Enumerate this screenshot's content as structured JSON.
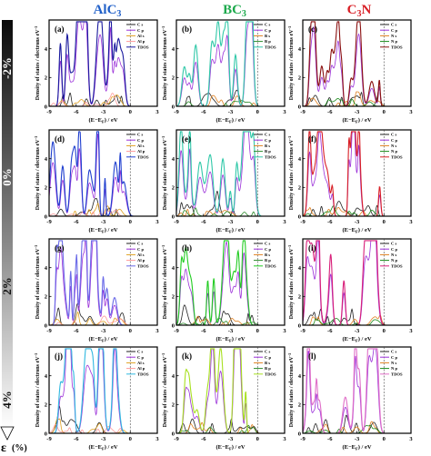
{
  "column_titles": [
    {
      "base": "AlC",
      "sub": "3",
      "color": "#1f5fc8"
    },
    {
      "base": "BC",
      "sub": "3",
      "color": "#1aa84a"
    },
    {
      "base": "C",
      "sub": "3",
      "tail": "N",
      "color": "#d81f26"
    }
  ],
  "strain_axis": {
    "symbol": "ε",
    "unit": "(%)",
    "labels": [
      "-2%",
      "0%",
      "2%",
      "4%"
    ]
  },
  "axis_text": {
    "ylabel": "Density of states / electrons eV",
    "ylabel_sup": "-1",
    "xlabel_prefix": "(E−E",
    "xlabel_sub": "F",
    "xlabel_suffix": ") / eV"
  },
  "chart_data": [
    {
      "type": "line",
      "panel": "(a)",
      "material": "AlC3",
      "strain": "-2%",
      "xlim": [
        -9,
        3
      ],
      "ylim": [
        0,
        6
      ],
      "x_ticks": [
        -9,
        -6,
        -3,
        0,
        3
      ],
      "y_ticks": [
        0,
        2,
        4
      ],
      "legend": [
        "C s",
        "C p",
        "Al s",
        "Al p",
        "TDOS"
      ],
      "series": [
        {
          "name": "C s",
          "color": "#222222"
        },
        {
          "name": "C p",
          "color": "#9b30d9"
        },
        {
          "name": "Al s",
          "color": "#e0a020"
        },
        {
          "name": "Al p",
          "color": "#ff9999"
        },
        {
          "name": "TDOS",
          "color": "#1a1a9e"
        }
      ]
    },
    {
      "type": "line",
      "panel": "(b)",
      "material": "BC3",
      "strain": "-2%",
      "xlim": [
        -9,
        3
      ],
      "ylim": [
        0,
        6
      ],
      "x_ticks": [
        -9,
        -6,
        -3,
        0,
        3
      ],
      "y_ticks": [
        0,
        2,
        4
      ],
      "legend": [
        "C s",
        "C p",
        "B s",
        "B p",
        "TDOS"
      ],
      "series": [
        {
          "name": "C s",
          "color": "#222222"
        },
        {
          "name": "C p",
          "color": "#9b30d9"
        },
        {
          "name": "B s",
          "color": "#e08020"
        },
        {
          "name": "B p",
          "color": "#2a8a2a"
        },
        {
          "name": "TDOS",
          "color": "#30c8a8"
        }
      ]
    },
    {
      "type": "line",
      "panel": "(c)",
      "material": "C3N",
      "strain": "-2%",
      "xlim": [
        -9,
        3
      ],
      "ylim": [
        0,
        6
      ],
      "x_ticks": [
        -9,
        -6,
        -3,
        0,
        3
      ],
      "y_ticks": [
        0,
        2,
        4
      ],
      "legend": [
        "C s",
        "C p",
        "N s",
        "N p",
        "TDOS"
      ],
      "series": [
        {
          "name": "C s",
          "color": "#222222"
        },
        {
          "name": "C p",
          "color": "#9b30d9"
        },
        {
          "name": "N s",
          "color": "#e08020"
        },
        {
          "name": "N p",
          "color": "#1a8a1a"
        },
        {
          "name": "TDOS",
          "color": "#8a1010"
        }
      ]
    },
    {
      "type": "line",
      "panel": "(d)",
      "material": "AlC3",
      "strain": "0%",
      "xlim": [
        -9,
        3
      ],
      "ylim": [
        0,
        6
      ],
      "x_ticks": [
        -9,
        -6,
        -3,
        0,
        3
      ],
      "y_ticks": [
        0,
        2,
        4
      ],
      "legend": [
        "C s",
        "C p",
        "Al s",
        "Al p",
        "TDOS"
      ],
      "series": [
        {
          "name": "C s",
          "color": "#222222"
        },
        {
          "name": "C p",
          "color": "#9b30d9"
        },
        {
          "name": "Al s",
          "color": "#e0a020"
        },
        {
          "name": "Al p",
          "color": "#ff9999"
        },
        {
          "name": "TDOS",
          "color": "#1f3fcf"
        }
      ]
    },
    {
      "type": "line",
      "panel": "(e)",
      "material": "BC3",
      "strain": "0%",
      "xlim": [
        -9,
        3
      ],
      "ylim": [
        0,
        6
      ],
      "x_ticks": [
        -9,
        -6,
        -3,
        0,
        3
      ],
      "y_ticks": [
        0,
        2,
        4
      ],
      "legend": [
        "C s",
        "C p",
        "B s",
        "B p",
        "TDOS"
      ],
      "series": [
        {
          "name": "C s",
          "color": "#222222"
        },
        {
          "name": "C p",
          "color": "#9b30d9"
        },
        {
          "name": "B s",
          "color": "#e08020"
        },
        {
          "name": "B p",
          "color": "#2a8a2a"
        },
        {
          "name": "TDOS",
          "color": "#30c8a8"
        }
      ]
    },
    {
      "type": "line",
      "panel": "(f)",
      "material": "C3N",
      "strain": "0%",
      "xlim": [
        -9,
        3
      ],
      "ylim": [
        0,
        6
      ],
      "x_ticks": [
        -9,
        -6,
        -3,
        0,
        3
      ],
      "y_ticks": [
        0,
        2,
        4
      ],
      "legend": [
        "C s",
        "C p",
        "N s",
        "N p",
        "TDOS"
      ],
      "series": [
        {
          "name": "C s",
          "color": "#222222"
        },
        {
          "name": "C p",
          "color": "#9b30d9"
        },
        {
          "name": "N s",
          "color": "#e08020"
        },
        {
          "name": "N p",
          "color": "#1a8a1a"
        },
        {
          "name": "TDOS",
          "color": "#d81f26"
        }
      ]
    },
    {
      "type": "line",
      "panel": "(g)",
      "material": "AlC3",
      "strain": "2%",
      "xlim": [
        -9,
        3
      ],
      "ylim": [
        0,
        6
      ],
      "x_ticks": [
        -9,
        -6,
        -3,
        0,
        3
      ],
      "y_ticks": [
        0,
        2,
        4
      ],
      "legend": [
        "C s",
        "C p",
        "Al s",
        "Al p",
        "TDOS"
      ],
      "series": [
        {
          "name": "C s",
          "color": "#222222"
        },
        {
          "name": "C p",
          "color": "#9b30d9"
        },
        {
          "name": "Al s",
          "color": "#e0a020"
        },
        {
          "name": "Al p",
          "color": "#ff9999"
        },
        {
          "name": "TDOS",
          "color": "#6a6ae8"
        }
      ]
    },
    {
      "type": "line",
      "panel": "(h)",
      "material": "BC3",
      "strain": "2%",
      "xlim": [
        -9,
        3
      ],
      "ylim": [
        0,
        6
      ],
      "x_ticks": [
        -9,
        -6,
        -3,
        0,
        3
      ],
      "y_ticks": [
        0,
        2,
        4
      ],
      "legend": [
        "C s",
        "C p",
        "B s",
        "B p",
        "TDOS"
      ],
      "series": [
        {
          "name": "C s",
          "color": "#222222"
        },
        {
          "name": "C p",
          "color": "#9b30d9"
        },
        {
          "name": "B s",
          "color": "#e08020"
        },
        {
          "name": "B p",
          "color": "#2a8a2a"
        },
        {
          "name": "TDOS",
          "color": "#22cc22"
        }
      ]
    },
    {
      "type": "line",
      "panel": "(i)",
      "material": "C3N",
      "strain": "2%",
      "xlim": [
        -9,
        3
      ],
      "ylim": [
        0,
        6
      ],
      "x_ticks": [
        -9,
        -6,
        -3,
        0,
        3
      ],
      "y_ticks": [
        0,
        2,
        4
      ],
      "legend": [
        "C s",
        "C p",
        "N s",
        "N p",
        "TDOS"
      ],
      "series": [
        {
          "name": "C s",
          "color": "#222222"
        },
        {
          "name": "C p",
          "color": "#9b30d9"
        },
        {
          "name": "N s",
          "color": "#e08020"
        },
        {
          "name": "N p",
          "color": "#1a8a1a"
        },
        {
          "name": "TDOS",
          "color": "#d8207a"
        }
      ]
    },
    {
      "type": "line",
      "panel": "(j)",
      "material": "AlC3",
      "strain": "4%",
      "xlim": [
        -9,
        3
      ],
      "ylim": [
        0,
        6
      ],
      "x_ticks": [
        -9,
        -6,
        -3,
        0,
        3
      ],
      "y_ticks": [
        0,
        2,
        4
      ],
      "legend": [
        "C s",
        "C p",
        "Al s",
        "Al p",
        "TDOS"
      ],
      "series": [
        {
          "name": "C s",
          "color": "#222222"
        },
        {
          "name": "C p",
          "color": "#9b30d9"
        },
        {
          "name": "Al s",
          "color": "#e0a020"
        },
        {
          "name": "Al p",
          "color": "#ff9999"
        },
        {
          "name": "TDOS",
          "color": "#30b8e0"
        }
      ]
    },
    {
      "type": "line",
      "panel": "(k)",
      "material": "BC3",
      "strain": "4%",
      "xlim": [
        -9,
        3
      ],
      "ylim": [
        0,
        6
      ],
      "x_ticks": [
        -9,
        -6,
        -3,
        0,
        3
      ],
      "y_ticks": [
        0,
        2,
        4
      ],
      "legend": [
        "C s",
        "C p",
        "B s",
        "B p",
        "TDOS"
      ],
      "series": [
        {
          "name": "C s",
          "color": "#222222"
        },
        {
          "name": "C p",
          "color": "#9b30d9"
        },
        {
          "name": "B s",
          "color": "#e08020"
        },
        {
          "name": "B p",
          "color": "#2a8a2a"
        },
        {
          "name": "TDOS",
          "color": "#a8e020"
        }
      ]
    },
    {
      "type": "line",
      "panel": "(l)",
      "material": "C3N",
      "strain": "4%",
      "xlim": [
        -9,
        3
      ],
      "ylim": [
        0,
        6
      ],
      "x_ticks": [
        -9,
        -6,
        -3,
        0,
        3
      ],
      "y_ticks": [
        0,
        2,
        4
      ],
      "legend": [
        "C s",
        "C p",
        "N s",
        "N p",
        "TDOS"
      ],
      "series": [
        {
          "name": "C s",
          "color": "#222222"
        },
        {
          "name": "C p",
          "color": "#9b30d9"
        },
        {
          "name": "N s",
          "color": "#e08020"
        },
        {
          "name": "N p",
          "color": "#1a8a1a"
        },
        {
          "name": "TDOS",
          "color": "#e070c8"
        }
      ]
    }
  ]
}
